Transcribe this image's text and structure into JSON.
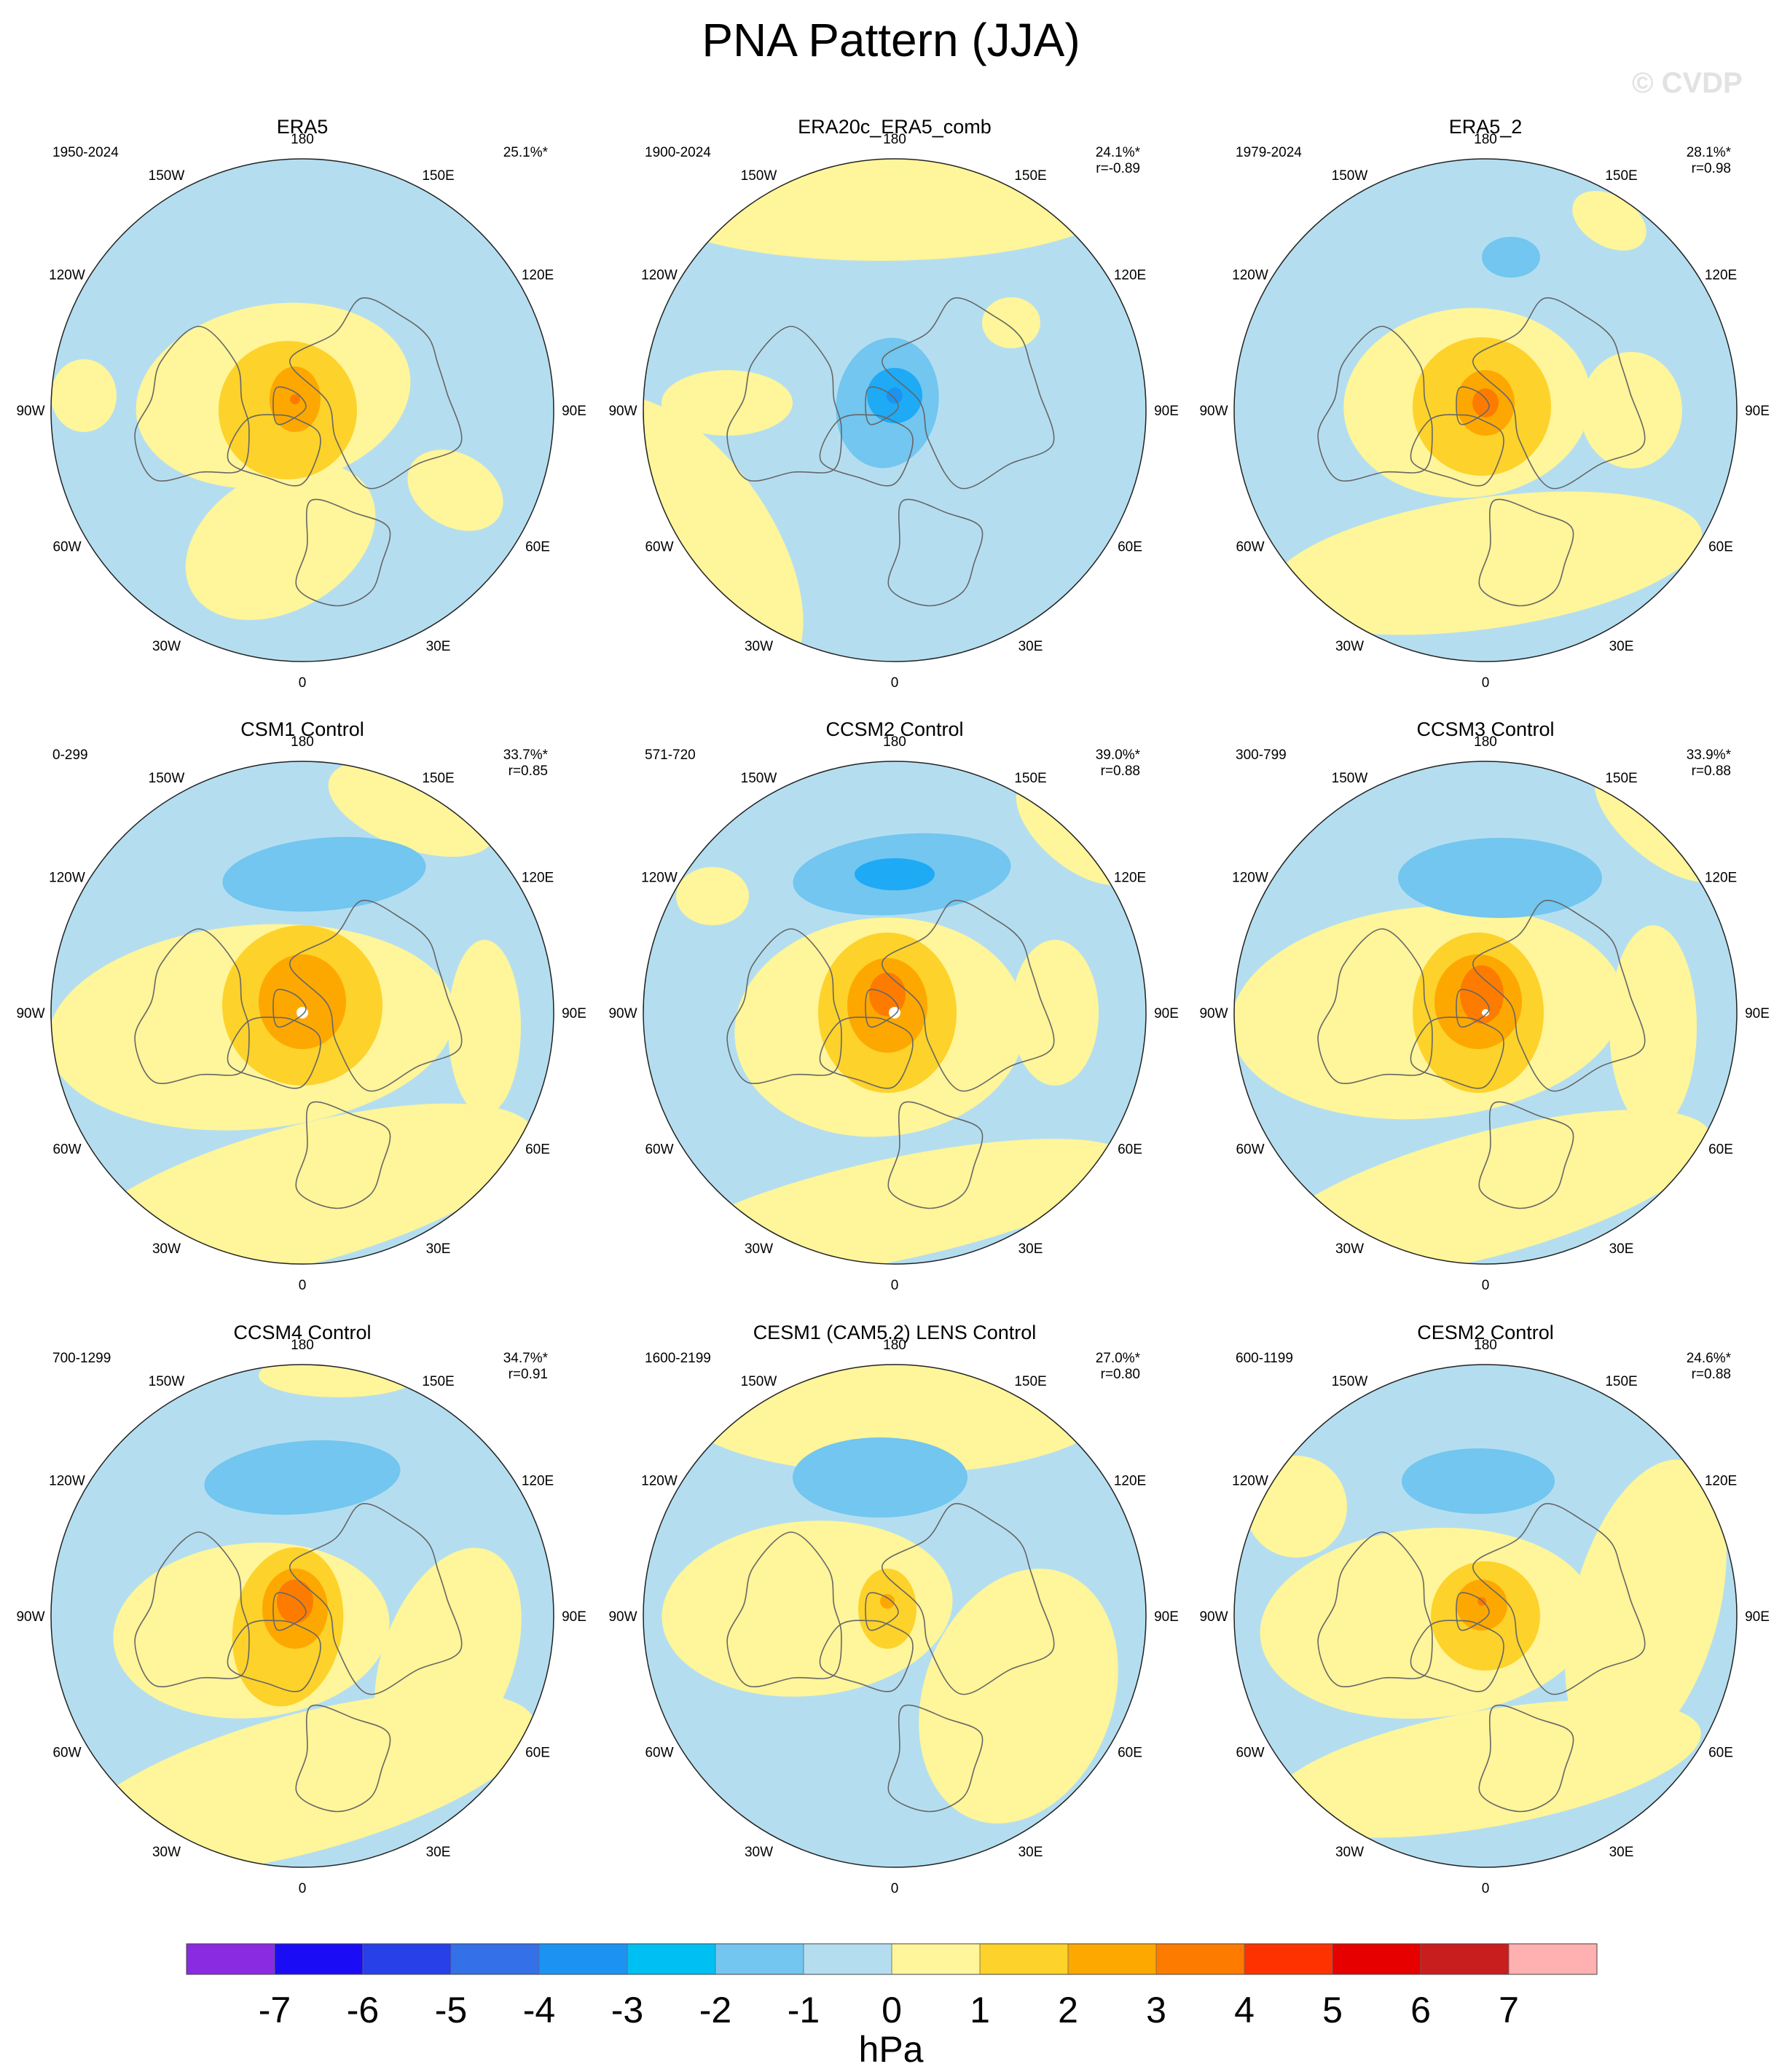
{
  "title": "PNA Pattern (JJA)",
  "watermark": "© CVDP",
  "colors": {
    "neg_light": "#b4def0",
    "neg_2": "#72c6ef",
    "neg_3": "#1eaaf5",
    "neg_4": "#1c93ee",
    "pos_1": "#fff59a",
    "pos_2": "#fdd22a",
    "pos_3": "#fda800",
    "pos_4": "#fd7c00",
    "coast": "#666666",
    "white": "#ffffff"
  },
  "chart_data": {
    "type": "heatmap",
    "projection": "north polar stereographic",
    "longitude_labels": [
      "180",
      "150E",
      "120E",
      "90E",
      "60E",
      "30E",
      "0",
      "30W",
      "60W",
      "90W",
      "120W",
      "150W"
    ],
    "panels": [
      {
        "name": "ERA5",
        "years": "1950-2024",
        "pct": "25.1%*",
        "r": ""
      },
      {
        "name": "ERA20c_ERA5_comb",
        "years": "1900-2024",
        "pct": "24.1%*",
        "r": "r=-0.89"
      },
      {
        "name": "ERA5_2",
        "years": "1979-2024",
        "pct": "28.1%*",
        "r": "r=0.98"
      },
      {
        "name": "CSM1 Control",
        "years": "0-299",
        "pct": "33.7%*",
        "r": "r=0.85"
      },
      {
        "name": "CCSM2 Control",
        "years": "571-720",
        "pct": "39.0%*",
        "r": "r=0.88"
      },
      {
        "name": "CCSM3 Control",
        "years": "300-799",
        "pct": "33.9%*",
        "r": "r=0.88"
      },
      {
        "name": "CCSM4 Control",
        "years": "700-1299",
        "pct": "34.7%*",
        "r": "r=0.91"
      },
      {
        "name": "CESM1 (CAM5.2) LENS Control",
        "years": "1600-2199",
        "pct": "27.0%*",
        "r": "r=0.80"
      },
      {
        "name": "CESM2 Control",
        "years": "600-1199",
        "pct": "24.6%*",
        "r": "r=0.88"
      }
    ],
    "colorbar": {
      "unit": "hPa",
      "tick_labels": [
        "-7",
        "-6",
        "-5",
        "-4",
        "-3",
        "-2",
        "-1",
        "0",
        "1",
        "2",
        "3",
        "4",
        "5",
        "6",
        "7"
      ],
      "colors": [
        "#8a2be2",
        "#1a0cf5",
        "#2840e8",
        "#3470e8",
        "#1c93f2",
        "#00bff2",
        "#72c6ef",
        "#b4def0",
        "#fff59a",
        "#fdd22a",
        "#fda800",
        "#fd7c00",
        "#fd3200",
        "#e60000",
        "#c81e1e",
        "#ffb0b0"
      ]
    }
  }
}
